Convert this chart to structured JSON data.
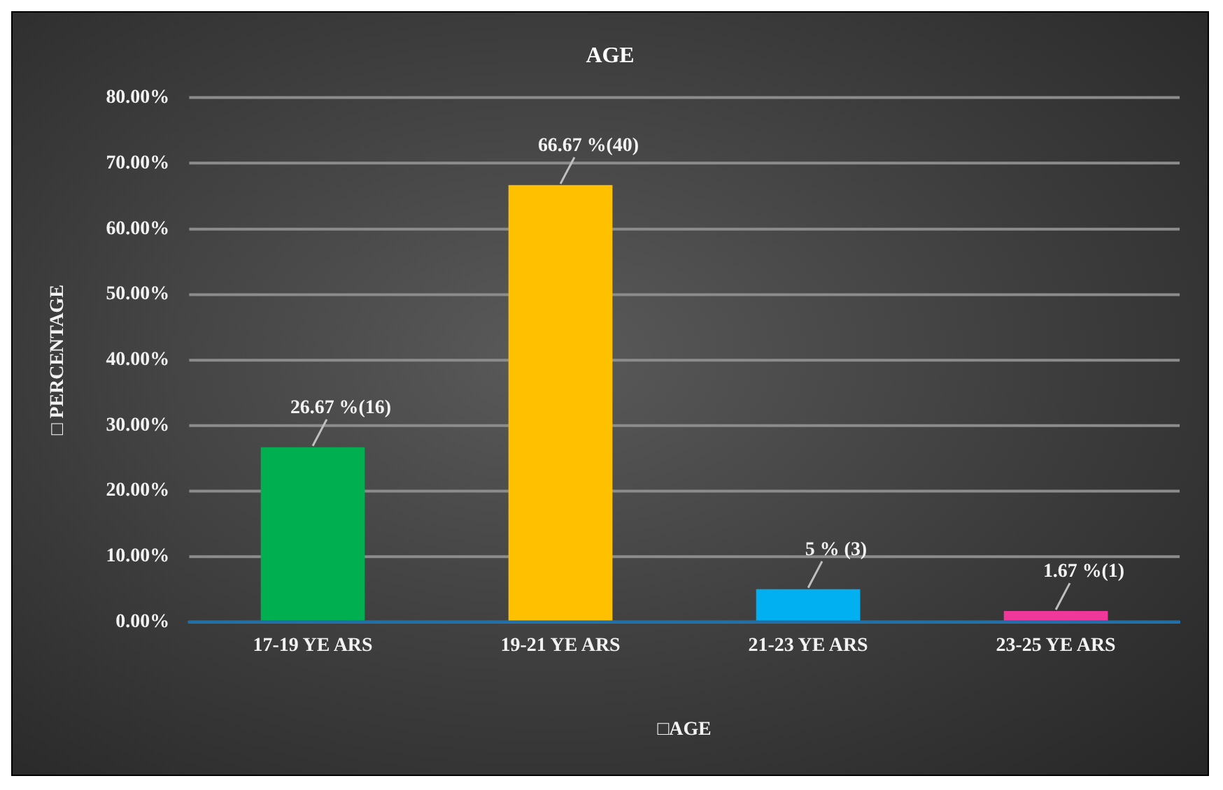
{
  "chart_data": {
    "type": "bar",
    "title": "AGE",
    "xlabel": "□AGE",
    "ylabel": "□ PERCENTAGE",
    "categories": [
      "17-19 YE ARS",
      "19-21 YE ARS",
      "21-23 YE ARS",
      "23-25 YE ARS"
    ],
    "values": [
      26.67,
      66.67,
      5,
      1.67
    ],
    "colors": [
      "#00b050",
      "#ffc000",
      "#00b0f0",
      "#f0389a"
    ],
    "value_labels": [
      "26.67 %(16)",
      "66.67 %(40)",
      "5 % (3)",
      "1.67 %(1)"
    ],
    "ylim": [
      0,
      80
    ],
    "yticks": [
      {
        "value": 0,
        "label": "0.00%"
      },
      {
        "value": 10,
        "label": "10.00%"
      },
      {
        "value": 20,
        "label": "20.00%"
      },
      {
        "value": 30,
        "label": "30.00%"
      },
      {
        "value": 40,
        "label": "40.00%"
      },
      {
        "value": 50,
        "label": "50.00%"
      },
      {
        "value": 60,
        "label": "60.00%"
      },
      {
        "value": 70,
        "label": "70.00%"
      },
      {
        "value": 80,
        "label": "80.00%"
      }
    ],
    "grid": "y",
    "legend": false
  }
}
